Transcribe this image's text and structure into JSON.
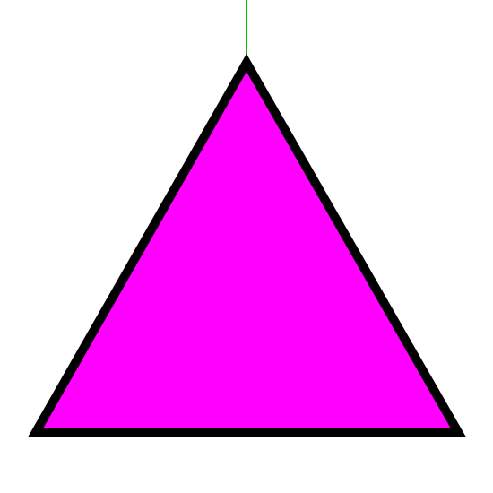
{
  "colors": {
    "background": "#ffffff",
    "triangle_fill": "#ff00ff",
    "triangle_stroke": "#000000",
    "guide_line": "#00c000"
  },
  "shapes": {
    "triangle": {
      "name": "magenta-triangle",
      "shape": "equilateral triangle, point up"
    },
    "guide": {
      "name": "vertical-guide-line",
      "shape": "thin vertical line above apex"
    }
  }
}
